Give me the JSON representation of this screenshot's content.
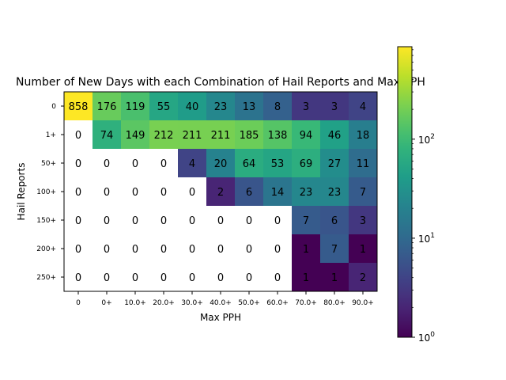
{
  "chart_data": {
    "type": "heatmap",
    "title": "Number of New Days with each Combination of Hail Reports and Max PPH",
    "xlabel": "Max PPH",
    "ylabel": "Hail Reports",
    "x_categories": [
      "0",
      "0+",
      "10.0+",
      "20.0+",
      "30.0+",
      "40.0+",
      "50.0+",
      "60.0+",
      "70.0+",
      "80.0+",
      "90.0+"
    ],
    "y_categories": [
      "0",
      "1+",
      "50+",
      "100+",
      "150+",
      "200+",
      "250+"
    ],
    "values": [
      [
        858,
        176,
        119,
        55,
        40,
        23,
        13,
        8,
        3,
        3,
        4
      ],
      [
        0,
        74,
        149,
        212,
        211,
        211,
        185,
        138,
        94,
        46,
        18
      ],
      [
        0,
        0,
        0,
        0,
        4,
        20,
        64,
        53,
        69,
        27,
        11
      ],
      [
        0,
        0,
        0,
        0,
        0,
        2,
        6,
        14,
        23,
        23,
        7
      ],
      [
        0,
        0,
        0,
        0,
        0,
        0,
        0,
        0,
        7,
        6,
        3
      ],
      [
        0,
        0,
        0,
        0,
        0,
        0,
        0,
        0,
        1,
        7,
        1
      ],
      [
        0,
        0,
        0,
        0,
        0,
        0,
        0,
        0,
        1,
        1,
        2
      ]
    ],
    "color_scale": "log",
    "colormap": "viridis",
    "zero_color": "#ffffff",
    "colorbar": {
      "range": [
        1,
        858
      ],
      "tick_labels": [
        {
          "value": 1,
          "base": "10",
          "exp": "0"
        },
        {
          "value": 10,
          "base": "10",
          "exp": "1"
        },
        {
          "value": 100,
          "base": "10",
          "exp": "2"
        }
      ]
    }
  }
}
